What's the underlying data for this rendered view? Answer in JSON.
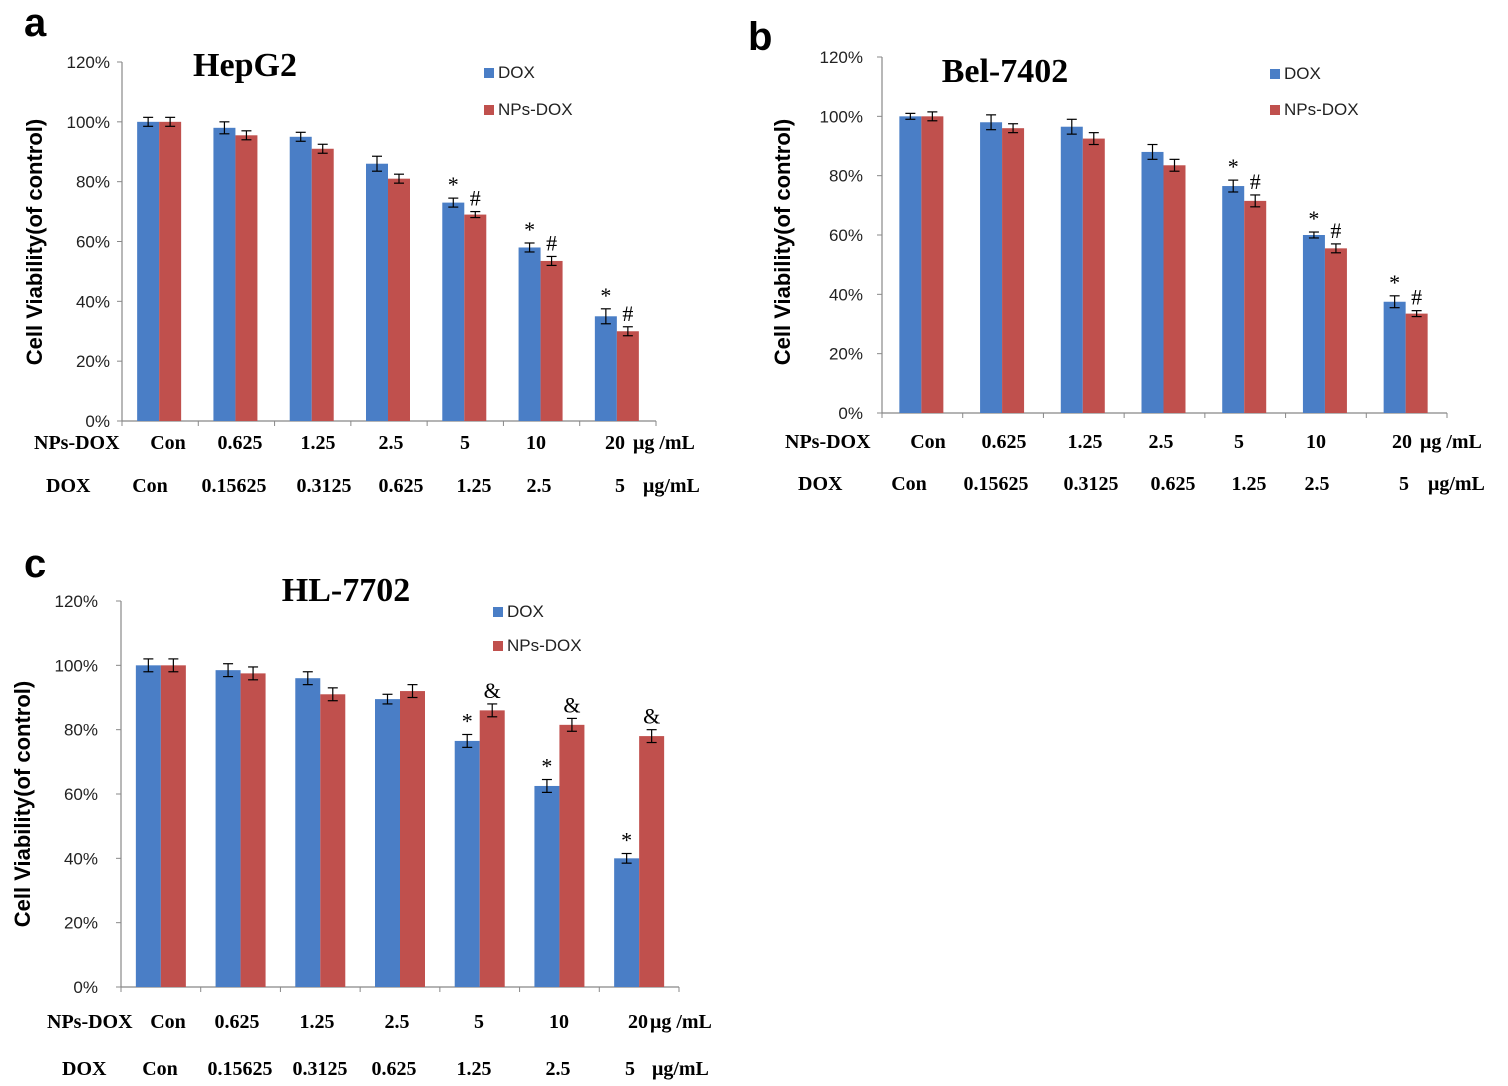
{
  "colors": {
    "dox": "#4a7ec6",
    "nps_dox": "#c0504d",
    "axis": "#888888",
    "text": "#000000"
  },
  "chart_data": [
    {
      "type": "bar",
      "panel_letter": "a",
      "title": "HepG2",
      "ylabel": "Cell Viability(of control)",
      "ylim": [
        0,
        120
      ],
      "yticks": [
        "0%",
        "20%",
        "40%",
        "60%",
        "80%",
        "100%",
        "120%"
      ],
      "legend_position": "top-right",
      "series": [
        {
          "name": "DOX",
          "values": [
            100,
            98,
            95,
            86,
            73,
            58,
            35
          ],
          "errors": [
            1.5,
            2,
            1.5,
            2.5,
            1.5,
            1.5,
            2.5
          ],
          "marks": [
            "",
            "",
            "",
            "",
            "*",
            "*",
            "*"
          ]
        },
        {
          "name": "NPs-DOX",
          "values": [
            100,
            95.5,
            91,
            81,
            69,
            53.5,
            30
          ],
          "errors": [
            1.5,
            1.5,
            1.5,
            1.5,
            1,
            1.5,
            1.5
          ],
          "marks": [
            "",
            "",
            "",
            "",
            "#",
            "#",
            "#"
          ]
        }
      ],
      "row1_label": "NPs-DOX",
      "row1": [
        "Con",
        "0.625",
        "1.25",
        "2.5",
        "5",
        "10",
        "20"
      ],
      "row1_unit": "μg /mL",
      "row2_label": "DOX",
      "row2": [
        "Con",
        "0.15625",
        "0.3125",
        "0.625",
        "1.25",
        "2.5",
        "5"
      ],
      "row2_unit": "μg/mL"
    },
    {
      "type": "bar",
      "panel_letter": "b",
      "title": "Bel-7402",
      "ylabel": "Cell Viability(of control)",
      "ylim": [
        0,
        120
      ],
      "yticks": [
        "0%",
        "20%",
        "40%",
        "60%",
        "80%",
        "100%",
        "120%"
      ],
      "legend_position": "top-right",
      "series": [
        {
          "name": "DOX",
          "values": [
            100,
            98,
            96.5,
            88,
            76.5,
            60,
            37.5
          ],
          "errors": [
            1,
            2.5,
            2.5,
            2.5,
            2,
            1,
            2
          ],
          "marks": [
            "",
            "",
            "",
            "",
            "*",
            "*",
            "*"
          ]
        },
        {
          "name": "NPs-DOX",
          "values": [
            100,
            96,
            92.5,
            83.5,
            71.5,
            55.5,
            33.5
          ],
          "errors": [
            1.5,
            1.5,
            2,
            2,
            2,
            1.5,
            1
          ],
          "marks": [
            "",
            "",
            "",
            "",
            "#",
            "#",
            "#"
          ]
        }
      ],
      "row1_label": "NPs-DOX",
      "row1": [
        "Con",
        "0.625",
        "1.25",
        "2.5",
        "5",
        "10",
        "20"
      ],
      "row1_unit": "μg /mL",
      "row2_label": "DOX",
      "row2": [
        "Con",
        "0.15625",
        "0.3125",
        "0.625",
        "1.25",
        "2.5",
        "5"
      ],
      "row2_unit": "μg/mL"
    },
    {
      "type": "bar",
      "panel_letter": "c",
      "title": "HL-7702",
      "ylabel": "Cell Viability(of control)",
      "ylim": [
        0,
        120
      ],
      "yticks": [
        "0%",
        "20%",
        "40%",
        "60%",
        "80%",
        "100%",
        "120%"
      ],
      "legend_position": "top-right",
      "series": [
        {
          "name": "DOX",
          "values": [
            100,
            98.5,
            96,
            89.5,
            76.5,
            62.5,
            40
          ],
          "errors": [
            2,
            2,
            2,
            1.5,
            2,
            2,
            1.5
          ],
          "marks": [
            "",
            "",
            "",
            "",
            "*",
            "*",
            "*"
          ]
        },
        {
          "name": "NPs-DOX",
          "values": [
            100,
            97.5,
            91,
            92,
            86,
            81.5,
            78
          ],
          "errors": [
            2,
            2,
            2,
            2,
            2,
            2,
            2
          ],
          "marks": [
            "",
            "",
            "",
            "",
            "&",
            "&",
            "&"
          ]
        }
      ],
      "row1_label": "NPs-DOX",
      "row1": [
        "Con",
        "0.625",
        "1.25",
        "2.5",
        "5",
        "10",
        "20"
      ],
      "row1_unit": "μg /mL",
      "row2_label": "DOX",
      "row2": [
        "Con",
        "0.15625",
        "0.3125",
        "0.625",
        "1.25",
        "2.5",
        "5"
      ],
      "row2_unit": "μg/mL"
    }
  ]
}
